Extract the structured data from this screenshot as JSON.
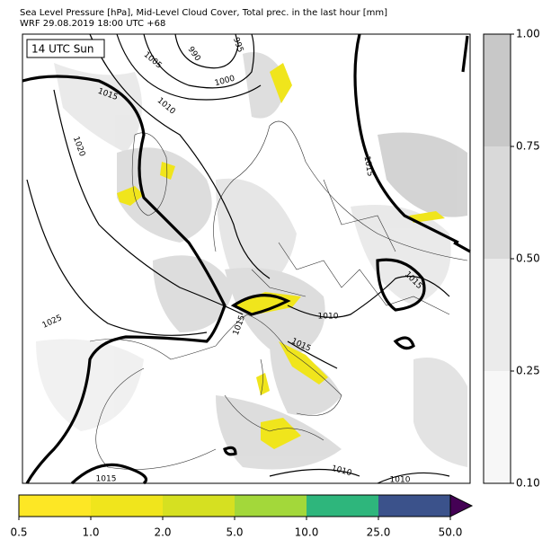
{
  "header": {
    "title_lines": [
      "Sea Level Pressure [hPa], Mid-Level Cloud Cover, Total prec. in the last hour [mm]",
      "WRF 29.08.2019 18:00 UTC +68"
    ]
  },
  "map": {
    "time_label": "14 UTC Sun",
    "contour_labels": [
      "995",
      "990",
      "1005",
      "1000",
      "1015",
      "1010",
      "1020",
      "1025",
      "1015",
      "1015",
      "1010",
      "1015",
      "1015",
      "1010",
      "1010",
      "1015"
    ]
  },
  "cloud_colorbar": {
    "ticks": [
      "0.10",
      "0.25",
      "0.50",
      "0.75",
      "1.00"
    ],
    "colors": [
      "#f7f7f7",
      "#ebebeb",
      "#d9d9d9",
      "#c8c8c8"
    ]
  },
  "precip_colorbar": {
    "ticks": [
      "0.5",
      "1.0",
      "2.0",
      "5.0",
      "10.0",
      "25.0",
      "50.0"
    ],
    "colors": [
      "#fde725",
      "#f0e51c",
      "#d6e021",
      "#a3d83a",
      "#2eb67c",
      "#3b528b"
    ],
    "extend_color": "#440154"
  }
}
